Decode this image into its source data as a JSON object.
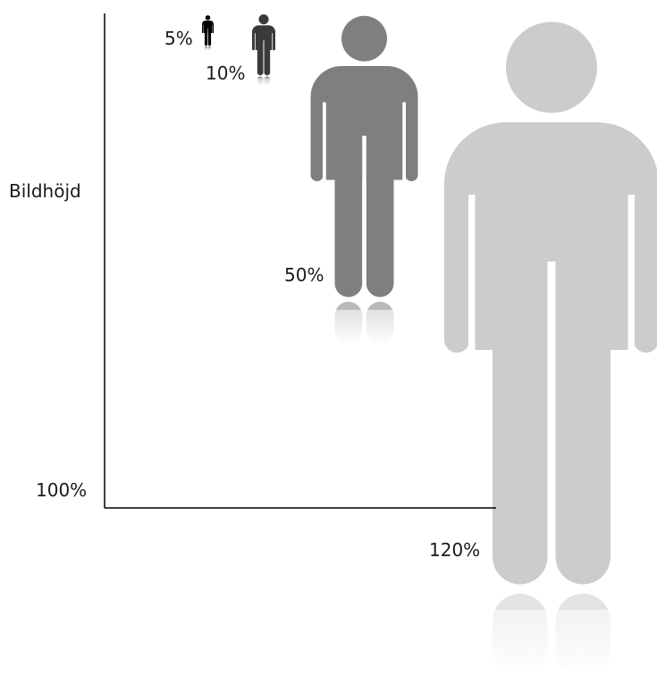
{
  "axis": {
    "y_label": "Bildhöjd",
    "y_reference_label": "100%"
  },
  "figures": [
    {
      "label": "5%",
      "scale_pct": 5,
      "color": "#000000"
    },
    {
      "label": "10%",
      "scale_pct": 10,
      "color": "#3a3a3a"
    },
    {
      "label": "50%",
      "scale_pct": 50,
      "color": "#7f7f7f"
    },
    {
      "label": "120%",
      "scale_pct": 120,
      "color": "#cccccc"
    }
  ]
}
